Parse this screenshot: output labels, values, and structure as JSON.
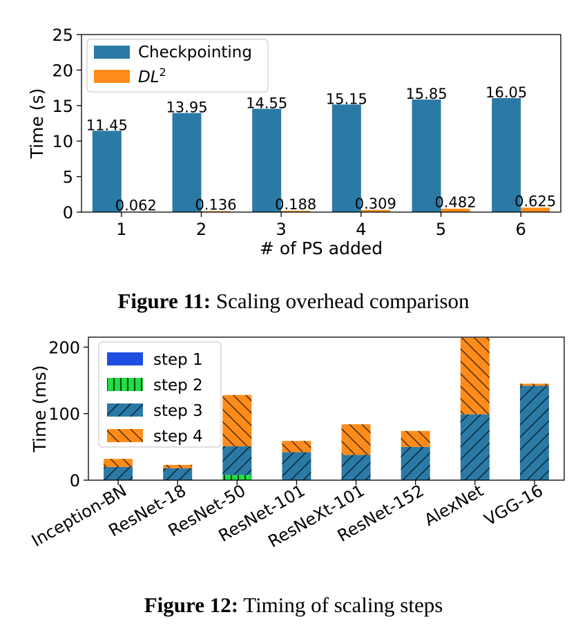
{
  "chart_data": [
    {
      "type": "bar",
      "xlabel": "# of PS added",
      "ylabel": "Time (s)",
      "ylim": [
        0,
        25
      ],
      "yticks": [
        "0",
        "5",
        "10",
        "15",
        "20",
        "25"
      ],
      "categories": [
        "1",
        "2",
        "3",
        "4",
        "5",
        "6"
      ],
      "legend_position": "top-left",
      "series": [
        {
          "name": "Checkpointing",
          "color": "#2b7aa6",
          "values": [
            11.45,
            13.95,
            14.55,
            15.15,
            15.85,
            16.05
          ],
          "labels": [
            "11.45",
            "13.95",
            "14.55",
            "15.15",
            "15.85",
            "16.05"
          ]
        },
        {
          "name": "DL",
          "name_superscript": "2",
          "color": "#ff8c1a",
          "values": [
            0.062,
            0.136,
            0.188,
            0.309,
            0.482,
            0.625
          ],
          "labels": [
            "0.062",
            "0.136",
            "0.188",
            "0.309",
            "0.482",
            "0.625"
          ]
        }
      ]
    },
    {
      "type": "bar",
      "stacked": true,
      "ylabel": "Time (ms)",
      "ylim": [
        0,
        215
      ],
      "yticks": [
        "0",
        "100",
        "200"
      ],
      "categories": [
        "Inception-BN",
        "ResNet-18",
        "ResNet-50",
        "ResNet-101",
        "ResNeXt-101",
        "ResNet-152",
        "AlexNet",
        "VGG-16"
      ],
      "legend_position": "top-left",
      "series": [
        {
          "name": "step 1",
          "color": "#1f4fe0",
          "values": [
            0,
            0,
            0,
            0,
            0,
            0,
            0,
            0
          ]
        },
        {
          "name": "step 2",
          "color": "#22dd44",
          "values": [
            0,
            0,
            8,
            0,
            0,
            0,
            0,
            0
          ]
        },
        {
          "name": "step 3",
          "color": "#2b7aa6",
          "values": [
            20,
            18,
            43,
            42,
            38,
            50,
            99,
            142
          ]
        },
        {
          "name": "step 4",
          "color": "#ff8c1a",
          "values": [
            12,
            5,
            77,
            17,
            46,
            24,
            115,
            3
          ]
        }
      ]
    }
  ],
  "captions": {
    "fig11_label": "Figure 11:",
    "fig11_text": " Scaling overhead comparison",
    "fig12_label": "Figure 12:",
    "fig12_text": " Timing of scaling steps"
  }
}
